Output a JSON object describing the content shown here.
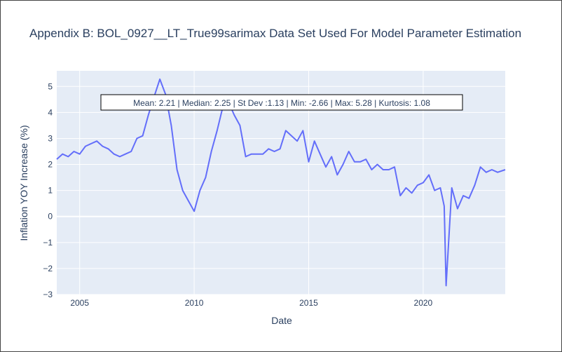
{
  "chart_data": {
    "type": "line",
    "title": "Appendix B: BOL_0927__LT_True99sarimax Data Set Used For Model Parameter Estimation",
    "xlabel": "Date",
    "ylabel": "Inflation YOY Increase (%)",
    "annotation": "Mean: 2.21 | Median: 2.25 | St Dev :1.13 | Min: -2.66 | Max: 5.28 | Kurtosis: 1.08",
    "xlim": [
      "2004-01",
      "2023-08"
    ],
    "ylim": [
      -3,
      5.6
    ],
    "x_ticks": [
      "2005",
      "2010",
      "2015",
      "2020"
    ],
    "y_ticks": [
      "−3",
      "−2",
      "−1",
      "0",
      "1",
      "2",
      "3",
      "4",
      "5"
    ],
    "grid": true,
    "line_color": "#636efa",
    "plot_bg": "#e5ecf6",
    "series": [
      {
        "x": [
          "2004-01",
          "2004-04",
          "2004-07",
          "2004-10",
          "2005-01",
          "2005-04",
          "2005-07",
          "2005-10",
          "2006-01",
          "2006-04",
          "2006-07",
          "2006-10",
          "2007-01",
          "2007-04",
          "2007-07",
          "2007-10",
          "2008-01",
          "2008-04",
          "2008-07",
          "2008-10",
          "2009-01",
          "2009-04",
          "2009-07",
          "2009-10",
          "2010-01",
          "2010-04",
          "2010-07",
          "2010-10",
          "2011-01",
          "2011-04",
          "2011-07",
          "2011-10",
          "2012-01",
          "2012-04",
          "2012-07",
          "2012-10",
          "2013-01",
          "2013-04",
          "2013-07",
          "2013-10",
          "2014-01",
          "2014-04",
          "2014-07",
          "2014-10",
          "2015-01",
          "2015-04",
          "2015-07",
          "2015-10",
          "2016-01",
          "2016-04",
          "2016-07",
          "2016-10",
          "2017-01",
          "2017-04",
          "2017-07",
          "2017-10",
          "2018-01",
          "2018-04",
          "2018-07",
          "2018-10",
          "2019-01",
          "2019-04",
          "2019-07",
          "2019-10",
          "2020-01",
          "2020-04",
          "2020-07",
          "2020-10",
          "2020-12",
          "2021-01",
          "2021-04",
          "2021-07",
          "2021-10",
          "2022-01",
          "2022-04",
          "2022-07",
          "2022-10",
          "2023-01",
          "2023-04",
          "2023-08"
        ],
        "values": [
          2.2,
          2.4,
          2.3,
          2.5,
          2.4,
          2.7,
          2.8,
          2.9,
          2.7,
          2.6,
          2.4,
          2.3,
          2.4,
          2.5,
          3.0,
          3.1,
          3.9,
          4.6,
          5.28,
          4.7,
          3.5,
          1.8,
          1.0,
          0.6,
          0.2,
          1.0,
          1.5,
          2.5,
          3.3,
          4.2,
          4.4,
          3.9,
          3.5,
          2.3,
          2.4,
          2.4,
          2.4,
          2.6,
          2.5,
          2.6,
          3.3,
          3.1,
          2.9,
          3.3,
          2.1,
          2.9,
          2.4,
          1.9,
          2.3,
          1.6,
          2.0,
          2.5,
          2.1,
          2.1,
          2.2,
          1.8,
          2.0,
          1.8,
          1.8,
          1.9,
          0.8,
          1.1,
          0.9,
          1.2,
          1.3,
          1.6,
          1.0,
          1.1,
          0.4,
          -2.66,
          1.1,
          0.3,
          0.8,
          0.7,
          1.2,
          1.9,
          1.7,
          1.8,
          1.7,
          1.8
        ]
      }
    ]
  }
}
